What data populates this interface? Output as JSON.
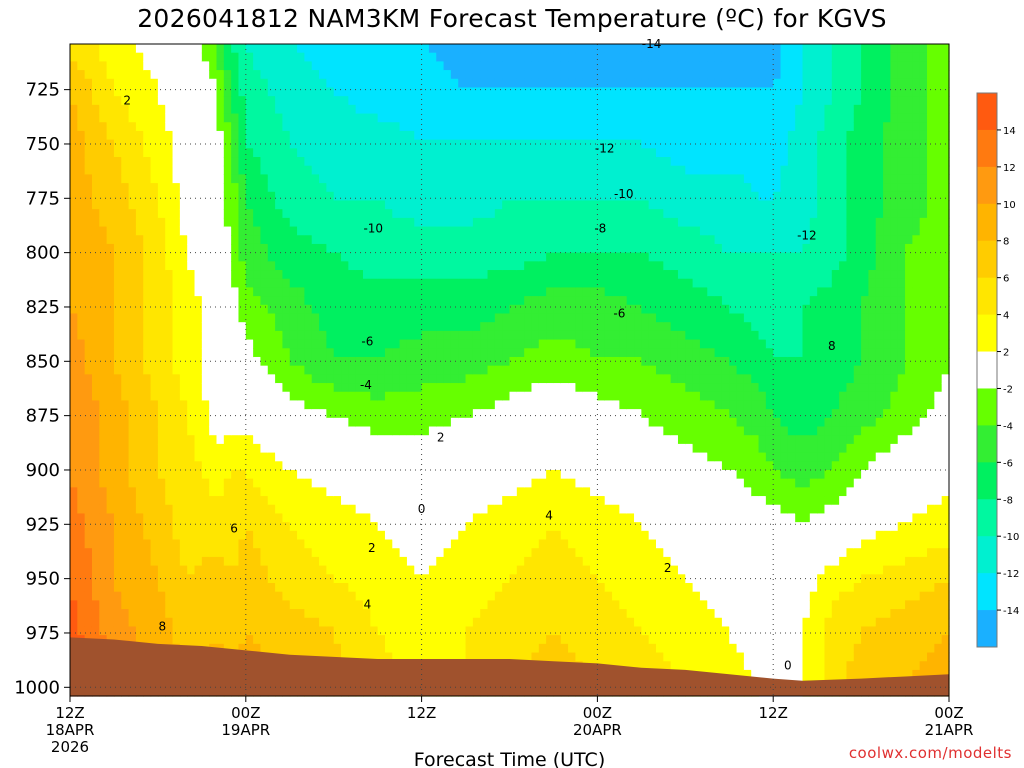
{
  "title": "2026041812 NAM3KM Forecast Temperature (ºC) for KGVS",
  "credit": "coolwx.com/modelts",
  "chart_data": {
    "type": "heatmap",
    "title": "2026041812 NAM3KM Forecast Temperature (ºC) for KGVS",
    "xlabel": "Forecast Time (UTC)",
    "ylabel": "",
    "x_range_hours": [
      0,
      60
    ],
    "y_range_hpa": [
      704,
      1004
    ],
    "y_reversed": true,
    "grid": true,
    "x_ticks": [
      {
        "h": 0,
        "lines": [
          "12Z",
          "18APR",
          "2026"
        ]
      },
      {
        "h": 12,
        "lines": [
          "00Z",
          "19APR"
        ]
      },
      {
        "h": 24,
        "lines": [
          "12Z"
        ]
      },
      {
        "h": 36,
        "lines": [
          "00Z",
          "20APR"
        ]
      },
      {
        "h": 48,
        "lines": [
          "12Z"
        ]
      },
      {
        "h": 60,
        "lines": [
          "00Z",
          "21APR"
        ]
      }
    ],
    "y_ticks": [
      725,
      750,
      775,
      800,
      825,
      850,
      875,
      900,
      925,
      950,
      975,
      1000
    ],
    "colorbar": {
      "labels": [
        14,
        12,
        10,
        8,
        6,
        4,
        2,
        -2,
        -4,
        -6,
        -8,
        -10,
        -12,
        -14
      ],
      "bins": [
        {
          "lo": 14,
          "hi": 16,
          "color": "#ff5a10"
        },
        {
          "lo": 12,
          "hi": 14,
          "color": "#ff7a10"
        },
        {
          "lo": 10,
          "hi": 12,
          "color": "#ff9a10"
        },
        {
          "lo": 8,
          "hi": 10,
          "color": "#ffb400"
        },
        {
          "lo": 6,
          "hi": 8,
          "color": "#ffcc00"
        },
        {
          "lo": 4,
          "hi": 6,
          "color": "#ffe600"
        },
        {
          "lo": 2,
          "hi": 4,
          "color": "#ffff00"
        },
        {
          "lo": -2,
          "hi": 2,
          "color": "#ffffff"
        },
        {
          "lo": -4,
          "hi": -2,
          "color": "#66ff00"
        },
        {
          "lo": -6,
          "hi": -4,
          "color": "#33ee33"
        },
        {
          "lo": -8,
          "hi": -6,
          "color": "#00f060"
        },
        {
          "lo": -10,
          "hi": -8,
          "color": "#00f8a0"
        },
        {
          "lo": -12,
          "hi": -10,
          "color": "#00f0d0"
        },
        {
          "lo": -14,
          "hi": -12,
          "color": "#00e4ff"
        },
        {
          "lo": -16,
          "hi": -14,
          "color": "#1ab0ff"
        }
      ]
    },
    "surface_color": "#a0522d",
    "surface_pressure": {
      "hours": [
        0,
        3,
        6,
        9,
        12,
        15,
        18,
        21,
        24,
        27,
        30,
        33,
        36,
        39,
        42,
        45,
        48,
        50,
        54,
        57,
        60
      ],
      "hpa": [
        977,
        978,
        980,
        981,
        983,
        985,
        986,
        987,
        987,
        987,
        987,
        988,
        989,
        991,
        992,
        994,
        996,
        997,
        996,
        995,
        994
      ]
    },
    "temperature_grid": {
      "hours": [
        0,
        3,
        6,
        8,
        10,
        11,
        12,
        15,
        18,
        21,
        24,
        27,
        30,
        33,
        36,
        39,
        42,
        45,
        47,
        48,
        50,
        52,
        54,
        57,
        60
      ],
      "hpa": [
        704,
        725,
        750,
        775,
        800,
        825,
        850,
        875,
        900,
        925,
        950,
        975,
        1000
      ],
      "celsius": [
        [
          5,
          3,
          1,
          0,
          -4,
          -8,
          -10,
          -12,
          -13,
          -14,
          -14,
          -15,
          -15,
          -15,
          -15,
          -15,
          -15,
          -15,
          -15,
          -15,
          -12,
          -10,
          -8,
          -5,
          -3
        ],
        [
          8,
          4,
          2,
          0,
          -2,
          -6,
          -9,
          -11,
          -12,
          -13,
          -13,
          -14,
          -14,
          -14,
          -14,
          -14,
          -14,
          -14,
          -14,
          -14,
          -12,
          -10,
          -8,
          -5,
          -3
        ],
        [
          9,
          6,
          3,
          1,
          -1,
          -4,
          -8,
          -10,
          -11,
          -11,
          -12,
          -12,
          -12,
          -12,
          -12,
          -12,
          -13,
          -13,
          -13,
          -13,
          -11,
          -9,
          -7,
          -5,
          -3
        ],
        [
          9,
          7,
          4,
          1,
          -1,
          -3,
          -6,
          -9,
          -10,
          -10,
          -11,
          -11,
          -10,
          -10,
          -10,
          -10,
          -11,
          -11,
          -12,
          -12,
          -11,
          -9,
          -7,
          -5,
          -3
        ],
        [
          10,
          8,
          5,
          2,
          0,
          -2,
          -5,
          -7,
          -8,
          -9,
          -9,
          -9,
          -9,
          -8,
          -8,
          -8,
          -9,
          -10,
          -10,
          -10,
          -10,
          -9,
          -7,
          -4,
          -3
        ],
        [
          10,
          8,
          5,
          3,
          1,
          -1,
          -3,
          -5,
          -7,
          -7,
          -7,
          -7,
          -6,
          -5,
          -5,
          -6,
          -7,
          -8,
          -9,
          -9,
          -8,
          -7,
          -6,
          -4,
          -2
        ],
        [
          11,
          8,
          5,
          3,
          1,
          -1,
          -1,
          -4,
          -6,
          -6,
          -5,
          -5,
          -4,
          -3,
          -4,
          -4,
          -5,
          -6,
          -7,
          -8,
          -8,
          -7,
          -6,
          -4,
          -2
        ],
        [
          12,
          9,
          6,
          4,
          1,
          1,
          1,
          -1,
          -2,
          -3,
          -3,
          -2,
          -1,
          0,
          -1,
          -2,
          -3,
          -4,
          -5,
          -6,
          -7,
          -6,
          -5,
          -3,
          -1
        ],
        [
          12,
          9,
          6,
          5,
          3,
          4,
          4,
          2,
          1,
          0,
          0,
          0,
          1,
          2,
          1,
          0,
          -1,
          -2,
          -3,
          -4,
          -5,
          -4,
          -2,
          0,
          1
        ],
        [
          13,
          10,
          7,
          5,
          5,
          5,
          6,
          4,
          3,
          2,
          1,
          2,
          3,
          4,
          3,
          2,
          1,
          0,
          -1,
          -1,
          -2,
          -1,
          1,
          2,
          3
        ],
        [
          14,
          10,
          8,
          6,
          7,
          6,
          7,
          5,
          4,
          3,
          2,
          3,
          4,
          5,
          4,
          3,
          2,
          1,
          0,
          0,
          1,
          3,
          4,
          5,
          6
        ],
        [
          15,
          11,
          9,
          7,
          8,
          7,
          8,
          7,
          6,
          4,
          3,
          4,
          5,
          6,
          5,
          4,
          3,
          2,
          1,
          0,
          2,
          5,
          6,
          7,
          8
        ],
        [
          16,
          12,
          10,
          8,
          9,
          8,
          9,
          8,
          7,
          5,
          3,
          4,
          6,
          7,
          6,
          5,
          4,
          3,
          2,
          0,
          2,
          5,
          7,
          8,
          9
        ]
      ]
    },
    "contour_labels": [
      {
        "text": "2",
        "h": 3.9,
        "p": 730
      },
      {
        "text": "-14",
        "h": 39.7,
        "p": 704
      },
      {
        "text": "-12",
        "h": 36.5,
        "p": 752
      },
      {
        "text": "-10",
        "h": 37.8,
        "p": 773
      },
      {
        "text": "-10",
        "h": 20.7,
        "p": 789
      },
      {
        "text": "-12",
        "h": 50.3,
        "p": 792
      },
      {
        "text": "-8",
        "h": 36.2,
        "p": 789
      },
      {
        "text": "-6",
        "h": 37.5,
        "p": 828
      },
      {
        "text": "-6",
        "h": 20.3,
        "p": 841
      },
      {
        "text": "8",
        "h": 52.0,
        "p": 843
      },
      {
        "text": "-4",
        "h": 20.2,
        "p": 861
      },
      {
        "text": "2",
        "h": 25.3,
        "p": 885
      },
      {
        "text": "0",
        "h": 24.0,
        "p": 918
      },
      {
        "text": "6",
        "h": 11.2,
        "p": 927
      },
      {
        "text": "4",
        "h": 32.7,
        "p": 921
      },
      {
        "text": "2",
        "h": 20.6,
        "p": 936
      },
      {
        "text": "2",
        "h": 40.8,
        "p": 945
      },
      {
        "text": "4",
        "h": 20.3,
        "p": 962
      },
      {
        "text": "8",
        "h": 6.3,
        "p": 972
      },
      {
        "text": "0",
        "h": 49.0,
        "p": 990
      }
    ]
  }
}
